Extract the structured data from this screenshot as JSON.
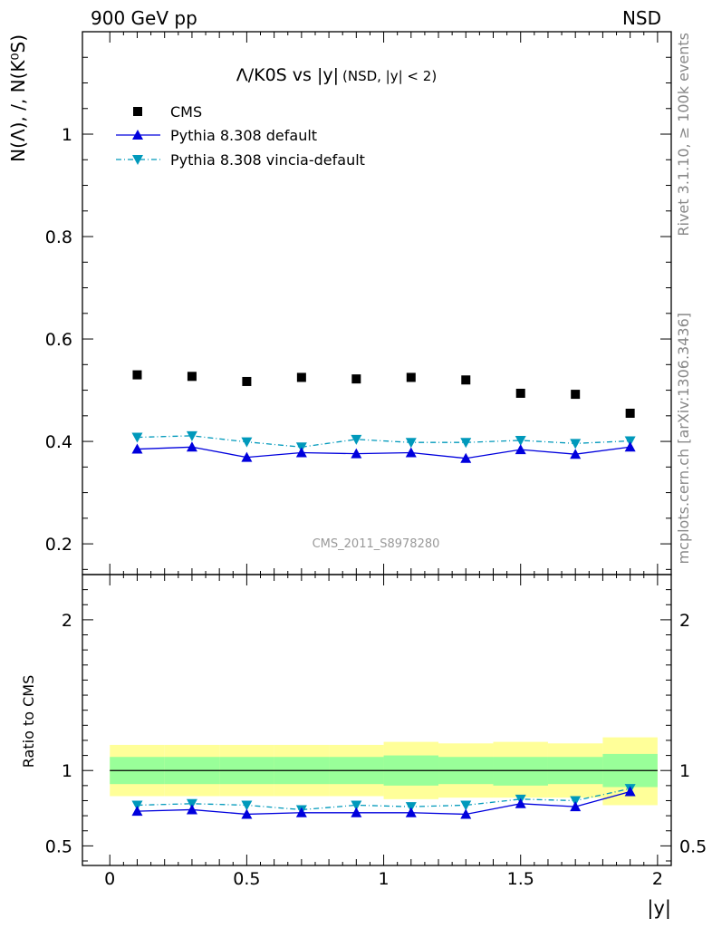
{
  "header": {
    "left": "900 GeV pp",
    "right": "NSD"
  },
  "side_text": {
    "rivet": "Rivet 3.1.10, ≥ 100k events",
    "mcplots": "mcplots.cern.ch [arXiv:1306.3436]"
  },
  "plot_title": {
    "main": "Λ/K0S vs |y|",
    "cut": "(NSD, |y| < 2)"
  },
  "watermark": "CMS_2011_S8978280",
  "colors": {
    "cms": "#000000",
    "pythia_default": "#0000dd",
    "pythia_vincia": "#0099bb",
    "band_inner": "#99ff99",
    "band_outer": "#ffff99"
  },
  "chart_data": [
    {
      "type": "scatter",
      "panel": "main",
      "ylabel": "N(Λ), /, N(K⁰S)",
      "xlim": [
        -0.1,
        2.05
      ],
      "ylim": [
        0.14,
        1.2
      ],
      "y_ticks": [
        0.2,
        0.4,
        0.6,
        0.8,
        1
      ],
      "y_tick_labels": [
        "0.2",
        "0.4",
        "0.6",
        "0.8",
        "1"
      ],
      "legend_position": "top-left",
      "x": [
        0.1,
        0.3,
        0.5,
        0.7,
        0.9,
        1.1,
        1.3,
        1.5,
        1.7,
        1.9
      ],
      "series": [
        {
          "name": "CMS",
          "style": "square",
          "values": [
            0.53,
            0.527,
            0.517,
            0.525,
            0.522,
            0.525,
            0.52,
            0.494,
            0.492,
            0.455
          ]
        },
        {
          "name": "Pythia 8.308 default",
          "style": "solid-triangle-up",
          "values": [
            0.385,
            0.389,
            0.369,
            0.378,
            0.376,
            0.378,
            0.367,
            0.384,
            0.375,
            0.389
          ]
        },
        {
          "name": "Pythia 8.308 vincia-default",
          "style": "dashdot-triangle-down",
          "values": [
            0.408,
            0.411,
            0.399,
            0.389,
            0.404,
            0.398,
            0.398,
            0.402,
            0.396,
            0.401
          ]
        }
      ]
    },
    {
      "type": "line",
      "panel": "ratio",
      "xlabel": "|y|",
      "ylabel": "Ratio to CMS",
      "xlim": [
        -0.1,
        2.05
      ],
      "ylim": [
        0.37,
        2.3
      ],
      "y_ticks": [
        0.5,
        1,
        2
      ],
      "y_tick_labels": [
        "0.5",
        "1",
        "2"
      ],
      "x_ticks": [
        0,
        0.5,
        1,
        1.5,
        2
      ],
      "x_tick_labels": [
        "0",
        "0.5",
        "1",
        "1.5",
        "2"
      ],
      "x": [
        0.1,
        0.3,
        0.5,
        0.7,
        0.9,
        1.1,
        1.3,
        1.5,
        1.7,
        1.9
      ],
      "x_edges": [
        0,
        0.2,
        0.4,
        0.6,
        0.8,
        1.0,
        1.2,
        1.4,
        1.6,
        1.8,
        2.0
      ],
      "band_inner": [
        [
          0.91,
          1.09
        ],
        [
          0.91,
          1.09
        ],
        [
          0.91,
          1.09
        ],
        [
          0.91,
          1.09
        ],
        [
          0.91,
          1.09
        ],
        [
          0.9,
          1.1
        ],
        [
          0.91,
          1.09
        ],
        [
          0.9,
          1.09
        ],
        [
          0.91,
          1.09
        ],
        [
          0.89,
          1.11
        ]
      ],
      "band_outer": [
        [
          0.83,
          1.17
        ],
        [
          0.83,
          1.17
        ],
        [
          0.83,
          1.17
        ],
        [
          0.83,
          1.17
        ],
        [
          0.83,
          1.17
        ],
        [
          0.81,
          1.19
        ],
        [
          0.82,
          1.18
        ],
        [
          0.82,
          1.19
        ],
        [
          0.82,
          1.18
        ],
        [
          0.77,
          1.22
        ]
      ],
      "series": [
        {
          "name": "Pythia 8.308 default",
          "values": [
            0.73,
            0.74,
            0.71,
            0.72,
            0.72,
            0.72,
            0.71,
            0.78,
            0.76,
            0.86
          ]
        },
        {
          "name": "Pythia 8.308 vincia-default",
          "values": [
            0.77,
            0.78,
            0.77,
            0.74,
            0.77,
            0.76,
            0.77,
            0.81,
            0.8,
            0.88
          ]
        }
      ]
    }
  ]
}
